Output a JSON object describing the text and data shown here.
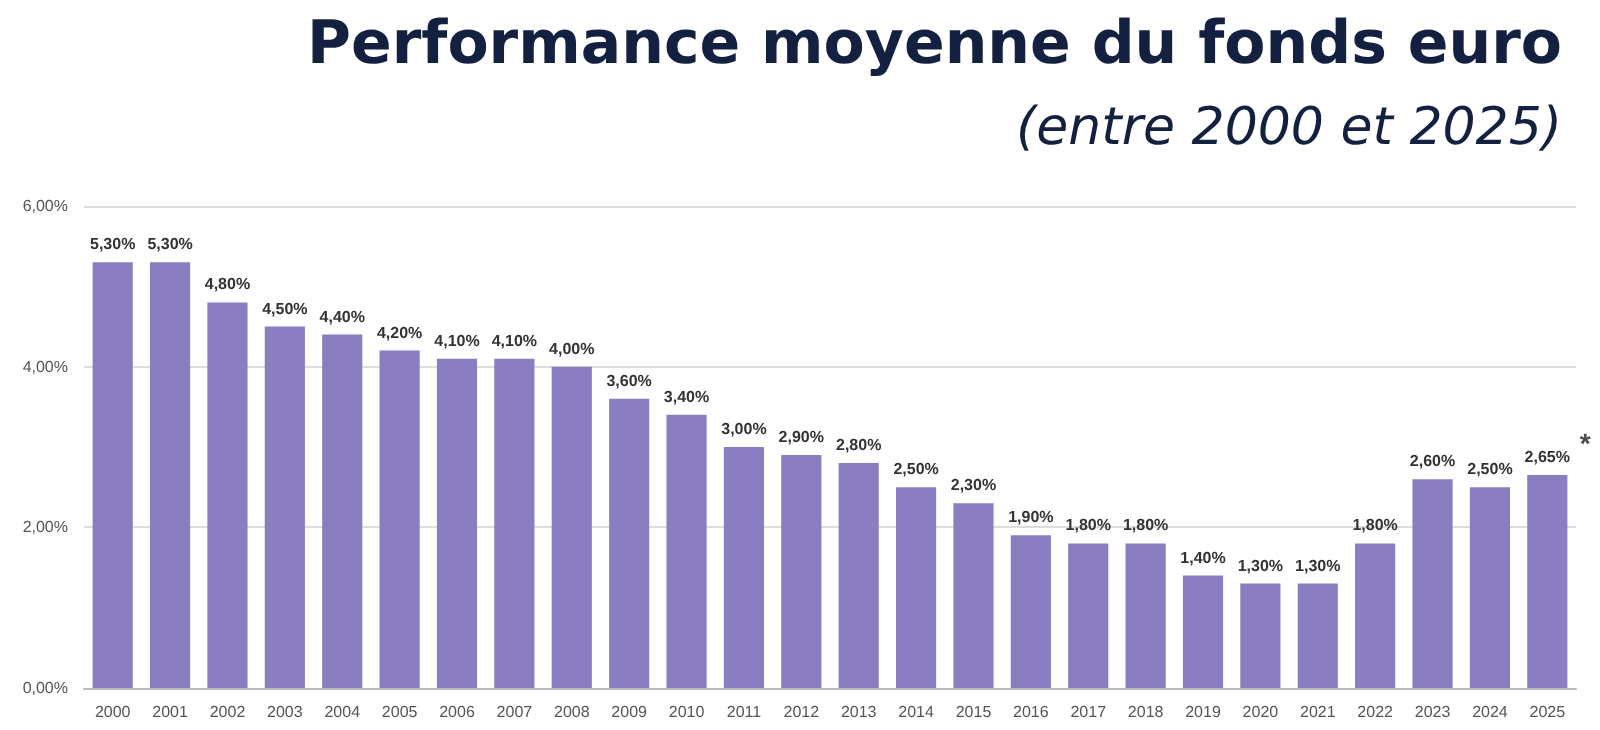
{
  "chart_data": {
    "type": "bar",
    "title": "Performance moyenne du fonds euro",
    "subtitle": "(entre 2000 et 2025)",
    "categories": [
      "2000",
      "2001",
      "2002",
      "2003",
      "2004",
      "2005",
      "2006",
      "2007",
      "2008",
      "2009",
      "2010",
      "2011",
      "2012",
      "2013",
      "2014",
      "2015",
      "2016",
      "2017",
      "2018",
      "2019",
      "2020",
      "2021",
      "2022",
      "2023",
      "2024",
      "2025"
    ],
    "values": [
      5.3,
      5.3,
      4.8,
      4.5,
      4.4,
      4.2,
      4.1,
      4.1,
      4.0,
      3.6,
      3.4,
      3.0,
      2.9,
      2.8,
      2.5,
      2.3,
      1.9,
      1.8,
      1.8,
      1.4,
      1.3,
      1.3,
      1.8,
      2.6,
      2.5,
      2.65
    ],
    "value_labels": [
      "5,30%",
      "5,30%",
      "4,80%",
      "4,50%",
      "4,40%",
      "4,20%",
      "4,10%",
      "4,10%",
      "4,00%",
      "3,60%",
      "3,40%",
      "3,00%",
      "2,90%",
      "2,80%",
      "2,50%",
      "2,30%",
      "1,90%",
      "1,80%",
      "1,80%",
      "1,40%",
      "1,30%",
      "1,30%",
      "1,80%",
      "2,60%",
      "2,50%",
      "2,65%"
    ],
    "annotations": [
      {
        "text": "*",
        "x": "2025",
        "y": 2.65
      }
    ],
    "color": "#8a7dc0",
    "ylim": [
      0,
      6
    ],
    "yticks": [
      {
        "value": 0,
        "label": "0,00%"
      },
      {
        "value": 2,
        "label": "2,00%"
      },
      {
        "value": 4,
        "label": "4,00%"
      },
      {
        "value": 6,
        "label": "6,00%"
      }
    ],
    "grid": "y"
  }
}
